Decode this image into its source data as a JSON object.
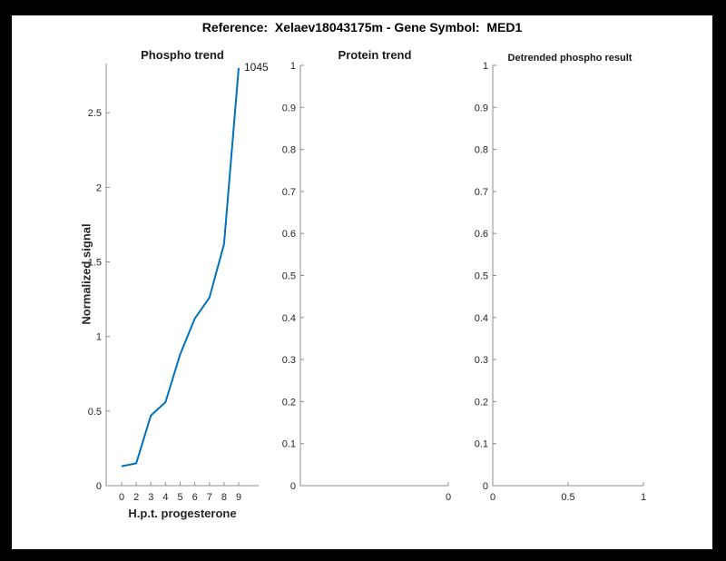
{
  "window": {
    "title": "Reference:  Xelaev18043175m - Gene Symbol:  MED1"
  },
  "colors": {
    "line": "#0072BD",
    "axis": "#8c8c8c",
    "tick_label": "#262626",
    "title": "#000000",
    "figure_background": "#ffffff",
    "frame_background": "#000000"
  },
  "chart_data": [
    {
      "type": "line",
      "title": "Phospho trend",
      "xlabel": "H.p.t. progesterone",
      "ylabel": "Normalized signal",
      "x_ticklabels": [
        "0",
        "2",
        "3",
        "4",
        "5",
        "6",
        "7",
        "8",
        "9"
      ],
      "x": [
        0,
        2,
        3,
        4,
        5,
        6,
        7,
        8,
        9
      ],
      "values": [
        0.13,
        0.15,
        0.47,
        0.56,
        0.88,
        1.12,
        1.26,
        1.62,
        2.8
      ],
      "y_ticks": [
        0,
        0.5,
        1,
        1.5,
        2,
        2.5
      ],
      "y_ticklabels": [
        "0",
        "0.5",
        "1",
        "1.5",
        "2",
        "2.5"
      ],
      "ylim": [
        0,
        2.83
      ],
      "annotation": {
        "text": "1045",
        "attached_to": "last-point"
      },
      "line_color": "#0072BD",
      "legend": "off",
      "grid": "off"
    },
    {
      "type": "line",
      "title": "Protein trend",
      "xlabel": "",
      "ylabel": "",
      "x_ticklabels": [
        "0"
      ],
      "x_tick_positions": [
        1
      ],
      "values": [],
      "y_ticks": [
        0,
        0.1,
        0.2,
        0.3,
        0.4,
        0.5,
        0.6,
        0.7,
        0.8,
        0.9,
        1
      ],
      "y_ticklabels": [
        "0",
        "0.1",
        "0.2",
        "0.3",
        "0.4",
        "0.5",
        "0.6",
        "0.7",
        "0.8",
        "0.9",
        "1"
      ],
      "ylim": [
        0,
        1
      ],
      "legend": "off",
      "grid": "off"
    },
    {
      "type": "line",
      "title": "Detrended phospho result",
      "xlabel": "",
      "ylabel": "",
      "x_ticklabels": [
        "0",
        "0.5",
        "1"
      ],
      "x_tick_positions": [
        0,
        0.5,
        1
      ],
      "values": [],
      "y_ticks": [
        0,
        0.1,
        0.2,
        0.3,
        0.4,
        0.5,
        0.6,
        0.7,
        0.8,
        0.9,
        1
      ],
      "y_ticklabels": [
        "0",
        "0.1",
        "0.2",
        "0.3",
        "0.4",
        "0.5",
        "0.6",
        "0.7",
        "0.8",
        "0.9",
        "1"
      ],
      "ylim": [
        0,
        1
      ],
      "xlim": [
        0,
        1
      ],
      "legend": "off",
      "grid": "off"
    }
  ]
}
